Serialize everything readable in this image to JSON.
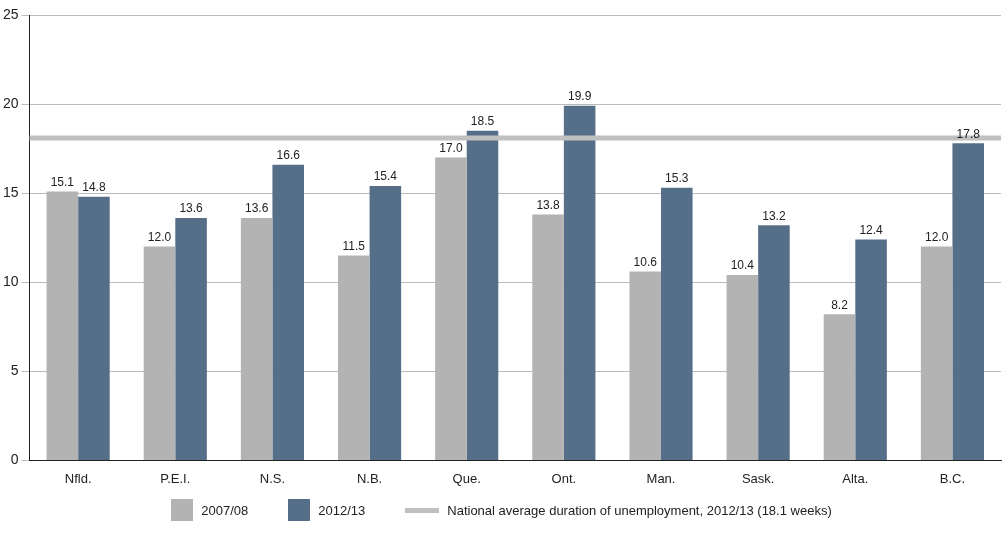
{
  "chart_data": {
    "type": "bar",
    "categories": [
      "Nfld.",
      "P.E.I.",
      "N.S.",
      "N.B.",
      "Que.",
      "Ont.",
      "Man.",
      "Sask.",
      "Alta.",
      "B.C."
    ],
    "series": [
      {
        "name": "2007/08",
        "color": "#b3b3b3",
        "values": [
          15.1,
          12.0,
          13.6,
          11.5,
          17.0,
          13.8,
          10.6,
          10.4,
          8.2,
          12.0
        ],
        "value_labels": [
          "15.1",
          "12.0",
          "13.6",
          "11.5",
          "17.0",
          "13.8",
          "10.6",
          "10.4",
          "8.2",
          "12.0"
        ]
      },
      {
        "name": "2012/13",
        "color": "#566f89",
        "values": [
          14.8,
          13.6,
          16.6,
          15.4,
          18.5,
          19.9,
          15.3,
          13.2,
          12.4,
          17.8
        ],
        "value_labels": [
          "14.8",
          "13.6",
          "16.6",
          "15.4",
          "18.5",
          "19.9",
          "15.3",
          "13.2",
          "12.4",
          "17.8"
        ]
      }
    ],
    "ylim": [
      0,
      25
    ],
    "yticks": [
      0,
      5,
      10,
      15,
      20,
      25
    ],
    "grid": "y",
    "legend": "bottom",
    "ref_lines": [
      {
        "axis": "y",
        "value": 18.1,
        "label": "National average duration of unemployment, 2012/13 (18.1 weeks)",
        "color": "#c0c0c0"
      }
    ]
  }
}
